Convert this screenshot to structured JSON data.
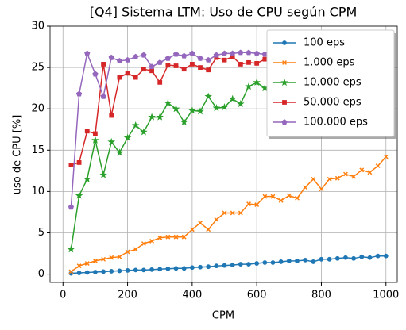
{
  "chart_data": {
    "type": "line",
    "title": "[Q4] Sistema LTM: Uso de CPU según CPM",
    "x_label": "CPM",
    "y_label": "uso de CPU [%]",
    "x": [
      25,
      50,
      75,
      100,
      125,
      150,
      175,
      200,
      225,
      250,
      275,
      300,
      325,
      350,
      375,
      400,
      425,
      450,
      475,
      500,
      525,
      550,
      575,
      600,
      625,
      650,
      675,
      700,
      725,
      750,
      775,
      800,
      825,
      850,
      875,
      900,
      925,
      950,
      975,
      1000
    ],
    "series": [
      {
        "name": "100 eps",
        "color": "#1f77b4",
        "marker": "circle",
        "values": [
          0.1,
          0.15,
          0.2,
          0.25,
          0.3,
          0.35,
          0.4,
          0.45,
          0.5,
          0.5,
          0.55,
          0.6,
          0.65,
          0.7,
          0.7,
          0.8,
          0.85,
          0.9,
          1.0,
          1.05,
          1.1,
          1.2,
          1.2,
          1.3,
          1.4,
          1.4,
          1.5,
          1.6,
          1.6,
          1.7,
          1.5,
          1.8,
          1.8,
          1.9,
          2.0,
          1.9,
          2.1,
          2.0,
          2.2,
          2.2
        ]
      },
      {
        "name": "1.000 eps",
        "color": "#ff7f0e",
        "marker": "x",
        "values": [
          0.3,
          1.0,
          1.3,
          1.6,
          1.8,
          2.0,
          2.1,
          2.7,
          3.0,
          3.7,
          4.0,
          4.4,
          4.5,
          4.5,
          4.5,
          5.4,
          6.2,
          5.4,
          6.6,
          7.4,
          7.4,
          7.4,
          8.5,
          8.4,
          9.4,
          9.4,
          8.9,
          9.5,
          9.2,
          10.5,
          11.5,
          10.3,
          11.5,
          11.6,
          12.1,
          11.8,
          12.6,
          12.3,
          13.1,
          14.2
        ]
      },
      {
        "name": "10.000 eps",
        "color": "#2ca02c",
        "marker": "star",
        "values": [
          3.0,
          9.5,
          11.5,
          16.2,
          12.0,
          16.0,
          14.7,
          16.5,
          18.0,
          17.2,
          19.0,
          19.0,
          20.7,
          20.0,
          18.4,
          19.8,
          19.7,
          21.5,
          20.1,
          20.2,
          21.2,
          20.6,
          22.7,
          23.2,
          22.5,
          23.0,
          23.3,
          23.1,
          23.5,
          23.4,
          23.6,
          23.8,
          23.5,
          23.9,
          24.0,
          23.8,
          24.1,
          24.0,
          24.2,
          24.1
        ]
      },
      {
        "name": "50.000 eps",
        "color": "#d62728",
        "marker": "square",
        "values": [
          13.2,
          13.5,
          17.3,
          17.0,
          25.4,
          19.2,
          23.8,
          24.3,
          23.8,
          24.8,
          24.6,
          23.2,
          25.3,
          25.2,
          24.8,
          25.4,
          25.0,
          24.7,
          26.2,
          25.9,
          26.3,
          25.4,
          25.6,
          25.5,
          26.0,
          25.8,
          26.1,
          25.9,
          26.0,
          26.2,
          25.9,
          26.1,
          26.0,
          26.2,
          26.1,
          26.0,
          26.3,
          26.1,
          26.2,
          26.2
        ]
      },
      {
        "name": "100.000 eps",
        "color": "#9467bd",
        "marker": "pentagon",
        "values": [
          8.1,
          21.8,
          26.7,
          24.2,
          21.5,
          26.2,
          25.8,
          25.9,
          26.3,
          26.5,
          25.1,
          25.6,
          26.1,
          26.6,
          26.4,
          26.7,
          26.1,
          25.9,
          26.5,
          26.7,
          26.7,
          26.8,
          26.8,
          26.7,
          26.6,
          26.7,
          26.7,
          26.8,
          26.7,
          26.8,
          26.7,
          26.8,
          26.7,
          26.8,
          26.8,
          26.7,
          26.8,
          26.8,
          26.7,
          26.8
        ]
      }
    ],
    "xlim": [
      -40,
      1035
    ],
    "ylim": [
      -1,
      30
    ],
    "xticks": [
      0,
      200,
      400,
      600,
      800,
      1000
    ],
    "yticks": [
      0,
      5,
      10,
      15,
      20,
      25,
      30
    ],
    "grid": true,
    "legend": "upper right"
  }
}
